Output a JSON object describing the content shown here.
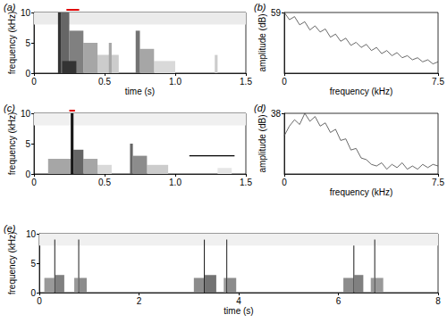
{
  "chart_data": [
    {
      "type": "spectrogram",
      "label": "(a)",
      "x_label": "time (s)",
      "y_label": "frequency (kHz)",
      "xlim": [
        0,
        1.5
      ],
      "xticks": [
        0,
        0.5,
        {
          "value": 1,
          "label": "1.0"
        },
        1.5
      ],
      "ylim": [
        0,
        10
      ],
      "yticks": [
        0,
        5,
        10
      ],
      "cells": [
        [
          0,
          1.5,
          8,
          10,
          0.08
        ],
        [
          0.45,
          0.6,
          0,
          3,
          0.2
        ],
        [
          0.35,
          0.45,
          0,
          5,
          0.35
        ],
        [
          0.25,
          0.35,
          0,
          7,
          0.5
        ],
        [
          0.19,
          0.25,
          0,
          10,
          0.6
        ],
        [
          0.17,
          0.19,
          0,
          10,
          0.8
        ],
        [
          0.2,
          0.3,
          0,
          2,
          0.8
        ],
        [
          0.53,
          0.55,
          0,
          5,
          0.35
        ],
        [
          0.85,
          1.0,
          0,
          2,
          0.15
        ],
        [
          0.75,
          0.85,
          0,
          4,
          0.35
        ],
        [
          0.72,
          0.75,
          0,
          7,
          0.55
        ],
        [
          1.28,
          1.3,
          0,
          3,
          0.2
        ]
      ],
      "marker_bar": {
        "t": [
          0.23,
          0.32
        ],
        "f": 10,
        "color": "#e00000"
      }
    },
    {
      "type": "line",
      "label": "(b)",
      "x_label": "frequency (kHz)",
      "y_label": "amplitude (dB)",
      "xlim": [
        0,
        7.5
      ],
      "xticks": [
        0,
        7.5
      ],
      "ylim": [
        0,
        59
      ],
      "yticks": [
        59
      ],
      "color": "#444444",
      "x": [
        0,
        0.25,
        0.5,
        0.75,
        1,
        1.25,
        1.5,
        1.75,
        2,
        2.25,
        2.5,
        2.75,
        3,
        3.25,
        3.5,
        3.75,
        4,
        4.25,
        4.5,
        4.75,
        5,
        5.25,
        5.5,
        5.75,
        6,
        6.25,
        6.5,
        6.75,
        7,
        7.25,
        7.5
      ],
      "values": [
        59,
        52,
        55,
        47,
        50,
        42,
        46,
        40,
        43,
        35,
        38,
        31,
        34,
        27,
        30,
        25,
        28,
        22,
        25,
        19,
        22,
        17,
        20,
        15,
        17,
        13,
        15,
        11,
        13,
        9,
        11
      ]
    },
    {
      "type": "spectrogram",
      "label": "(c)",
      "y_label": "frequency (kHz)",
      "xlim": [
        0,
        1.5
      ],
      "xticks": [
        0,
        0.5,
        {
          "value": 1,
          "label": "1.0"
        },
        1.5
      ],
      "ylim": [
        0,
        10
      ],
      "yticks": [
        0,
        5,
        10
      ],
      "cells": [
        [
          0,
          1.5,
          8,
          10,
          0.06
        ],
        [
          0.1,
          0.26,
          0,
          2.5,
          0.35
        ],
        [
          0.45,
          0.55,
          0,
          1.5,
          0.15
        ],
        [
          0.35,
          0.45,
          0,
          2.5,
          0.35
        ],
        [
          0.28,
          0.35,
          0,
          4,
          0.6
        ],
        [
          0.26,
          0.28,
          0,
          10,
          0.9
        ],
        [
          0.8,
          0.95,
          0,
          1.5,
          0.2
        ],
        [
          0.7,
          0.8,
          0,
          3,
          0.45
        ],
        [
          0.68,
          0.7,
          0,
          5,
          0.6
        ],
        [
          1.3,
          1.4,
          0,
          1,
          0.1
        ]
      ],
      "marker_bar": {
        "t": [
          0.25,
          0.29
        ],
        "f": 10,
        "color": "#e00000"
      },
      "scale_bar": {
        "t": [
          1.1,
          1.42
        ],
        "f": 3,
        "color": "#000000"
      }
    },
    {
      "type": "line",
      "label": "(d)",
      "x_label": "frequency (kHz)",
      "y_label": "amplitude (dB)",
      "xlim": [
        0,
        7.5
      ],
      "xticks": [
        0,
        7.5
      ],
      "ylim": [
        0,
        38
      ],
      "yticks": [
        38
      ],
      "color": "#444444",
      "x": [
        0,
        0.25,
        0.5,
        0.75,
        1,
        1.25,
        1.5,
        1.75,
        2,
        2.25,
        2.5,
        2.75,
        3,
        3.25,
        3.5,
        3.75,
        4,
        4.25,
        4.5,
        4.75,
        5,
        5.25,
        5.5,
        5.75,
        6,
        6.25,
        6.5,
        6.75,
        7,
        7.25,
        7.5
      ],
      "values": [
        24,
        30,
        34,
        31,
        38,
        33,
        36,
        30,
        32,
        26,
        28,
        21,
        22,
        15,
        16,
        10,
        9,
        6,
        5,
        7,
        3,
        6,
        4,
        7,
        3,
        5,
        3,
        6,
        4,
        6,
        5
      ]
    },
    {
      "type": "spectrogram",
      "label": "(e)",
      "x_label": "time (s)",
      "y_label": "frequency (kHz)",
      "xlim": [
        0,
        8
      ],
      "xticks": [
        0,
        2,
        4,
        6,
        8
      ],
      "ylim": [
        0,
        10
      ],
      "yticks": [
        0,
        5,
        10
      ],
      "cells": [
        [
          0,
          8,
          8,
          10,
          0.06
        ],
        [
          0.1,
          0.3,
          0,
          2.5,
          0.4
        ],
        [
          0.32,
          0.5,
          0,
          3,
          0.5
        ],
        [
          0.3,
          0.32,
          0,
          9,
          0.8
        ],
        [
          0.7,
          0.78,
          0,
          2.5,
          0.4
        ],
        [
          0.8,
          0.95,
          0,
          2.5,
          0.45
        ],
        [
          0.78,
          0.8,
          0,
          9,
          0.8
        ],
        [
          3.1,
          3.3,
          0,
          2.5,
          0.45
        ],
        [
          3.32,
          3.55,
          0,
          3,
          0.55
        ],
        [
          3.3,
          3.32,
          0,
          9,
          0.85
        ],
        [
          3.7,
          3.75,
          0,
          2.5,
          0.4
        ],
        [
          3.77,
          3.95,
          0,
          2.5,
          0.45
        ],
        [
          3.75,
          3.77,
          0,
          9,
          0.8
        ],
        [
          6.1,
          6.3,
          0,
          2.5,
          0.45
        ],
        [
          6.32,
          6.5,
          0,
          3,
          0.5
        ],
        [
          6.3,
          6.32,
          0,
          8,
          0.8
        ],
        [
          6.65,
          6.72,
          0,
          2.5,
          0.4
        ],
        [
          6.74,
          6.9,
          0,
          2.5,
          0.4
        ],
        [
          6.72,
          6.74,
          0,
          9,
          0.8
        ]
      ]
    }
  ]
}
